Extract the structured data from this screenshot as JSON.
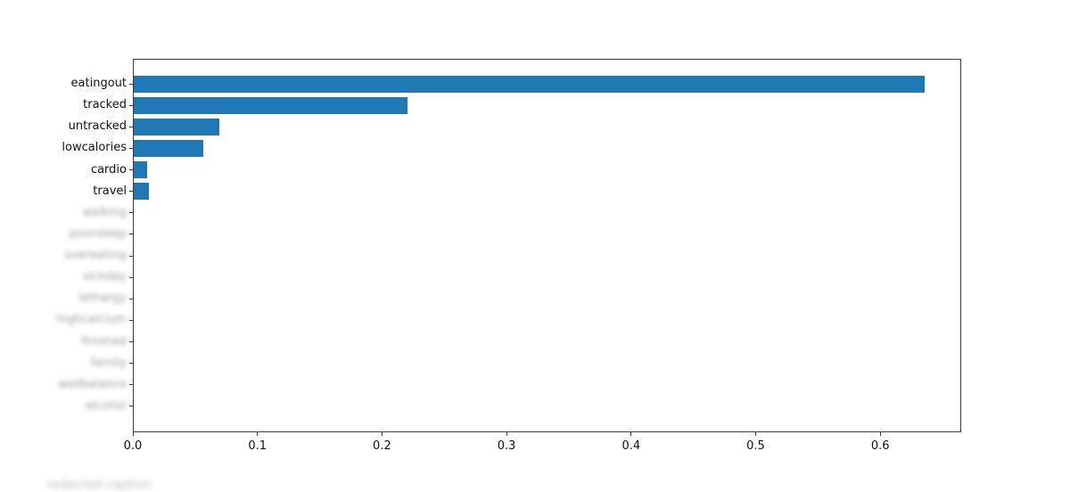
{
  "figure": {
    "background": "#ffffff",
    "bottom_caption": {
      "text": "redacted caption",
      "redacted": true
    }
  },
  "chart_data": {
    "type": "bar",
    "orientation": "horizontal",
    "title": "",
    "xlabel": "",
    "ylabel": "",
    "xlim": [
      0,
      0.665
    ],
    "grid": false,
    "legend": null,
    "bar_color": "#1f77b4",
    "axis_color": "#3d3d3d",
    "x_ticks": [
      {
        "label": "0.0",
        "value": 0.0
      },
      {
        "label": "0.1",
        "value": 0.1
      },
      {
        "label": "0.2",
        "value": 0.2
      },
      {
        "label": "0.3",
        "value": 0.3
      },
      {
        "label": "0.4",
        "value": 0.4
      },
      {
        "label": "0.5",
        "value": 0.5
      },
      {
        "label": "0.6",
        "value": 0.6
      }
    ],
    "rows": [
      {
        "label": "eatingout",
        "value": 0.635,
        "redacted": false
      },
      {
        "label": "tracked",
        "value": 0.22,
        "redacted": false
      },
      {
        "label": "untracked",
        "value": 0.069,
        "redacted": false
      },
      {
        "label": "lowcalories",
        "value": 0.056,
        "redacted": false
      },
      {
        "label": "cardio",
        "value": 0.011,
        "redacted": false
      },
      {
        "label": "travel",
        "value": 0.012,
        "redacted": false
      },
      {
        "label": "walking",
        "value": 0.0,
        "redacted": true
      },
      {
        "label": "poorsleep",
        "value": 0.0,
        "redacted": true
      },
      {
        "label": "overeating",
        "value": 0.0,
        "redacted": true
      },
      {
        "label": "sickday",
        "value": 0.0,
        "redacted": true
      },
      {
        "label": "lethargy",
        "value": 0.0,
        "redacted": true
      },
      {
        "label": "highcalcium",
        "value": 0.0,
        "redacted": true
      },
      {
        "label": "finished",
        "value": 0.0,
        "redacted": true
      },
      {
        "label": "family",
        "value": 0.0,
        "redacted": true
      },
      {
        "label": "wellbalance",
        "value": 0.0,
        "redacted": true
      },
      {
        "label": "alcohol",
        "value": 0.0,
        "redacted": true
      }
    ]
  }
}
